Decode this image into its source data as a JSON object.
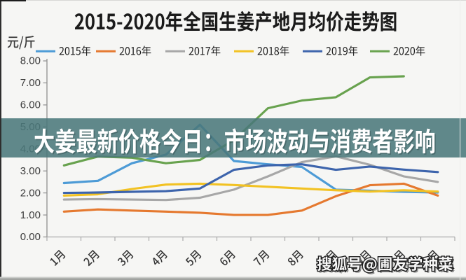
{
  "image_type": "article-illustration: line chart screenshot with headline overlay and watermark",
  "title": "2015-2020年全国生姜产地月均价走势图",
  "overlay_banner": {
    "headline": "大姜最新价格今日：市场波动与消费者影响",
    "background_color": "#3C696D",
    "text_color": "#FFFFFF"
  },
  "watermark": {
    "text": "搜狐号@圃友学种菜",
    "style": "white with dark outline"
  },
  "y_axis": {
    "unit_label": "元/斤",
    "tick_labels": [
      "8.00",
      "7.00",
      "6.00",
      "5.00",
      "4.00",
      "3.00",
      "2.00",
      "1.00",
      "0.00"
    ]
  },
  "x_axis": {
    "labels": [
      "1月",
      "2月",
      "3月",
      "4月",
      "5月",
      "6月",
      "7月",
      "8月",
      "9月",
      "10月",
      "11月",
      "12月"
    ],
    "labels_joined": "1月 2月 3月 4月 5月 6月 7月 8月 9月 10月 11月 12月"
  },
  "legend": [
    {
      "label": "2015年",
      "color": "#4D9BD6"
    },
    {
      "label": "2016年",
      "color": "#E5792F"
    },
    {
      "label": "2017年",
      "color": "#A7A7A7"
    },
    {
      "label": "2018年",
      "color": "#F2C223"
    },
    {
      "label": "2019年",
      "color": "#3D64AC"
    },
    {
      "label": "2020年",
      "color": "#68A24E"
    }
  ],
  "chart_data": {
    "type": "line",
    "title": "2015-2020年全国生姜产地月均价走势图",
    "xlabel": "",
    "ylabel": "元/斤",
    "ylim": [
      0.0,
      8.0
    ],
    "y_tick_step": 1.0,
    "grid": false,
    "legend_position": "top",
    "categories": [
      "1月",
      "2月",
      "3月",
      "4月",
      "5月",
      "6月",
      "7月",
      "8月",
      "9月",
      "10月",
      "11月",
      "12月"
    ],
    "series": [
      {
        "name": "2015年",
        "color": "#4D9BD6",
        "values": [
          2.45,
          2.55,
          3.35,
          3.74,
          5.1,
          3.45,
          3.3,
          3.18,
          2.15,
          2.1,
          2.05,
          2.02
        ]
      },
      {
        "name": "2016年",
        "color": "#E5792F",
        "values": [
          1.15,
          1.25,
          1.2,
          1.15,
          1.1,
          1.0,
          1.0,
          1.2,
          1.85,
          2.35,
          2.42,
          1.88
        ]
      },
      {
        "name": "2017年",
        "color": "#A7A7A7",
        "values": [
          1.7,
          1.72,
          1.7,
          1.68,
          1.78,
          2.15,
          2.75,
          3.4,
          3.66,
          3.28,
          2.75,
          2.5
        ]
      },
      {
        "name": "2018年",
        "color": "#F2C223",
        "values": [
          1.88,
          1.94,
          2.18,
          2.38,
          2.42,
          2.36,
          2.28,
          2.2,
          2.12,
          2.06,
          2.12,
          2.06
        ]
      },
      {
        "name": "2019年",
        "color": "#3D64AC",
        "values": [
          2.0,
          2.02,
          2.05,
          2.08,
          2.2,
          3.05,
          3.25,
          3.3,
          3.05,
          3.2,
          3.06,
          2.95
        ]
      },
      {
        "name": "2020年",
        "color": "#68A24E",
        "values": [
          3.25,
          3.65,
          3.6,
          3.35,
          3.5,
          4.4,
          5.85,
          6.2,
          6.35,
          7.25,
          7.3,
          null
        ]
      }
    ]
  }
}
